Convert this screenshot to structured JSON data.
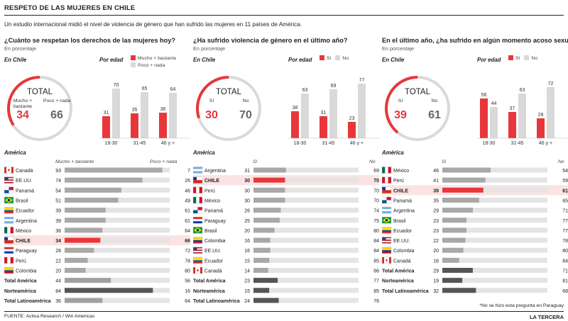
{
  "title": "RESPETO DE LAS MUJERES EN CHILE",
  "intro": "Un estudio internacional midió el nivel de violencia de género que han sufrido las mujeres en 11 países de América.",
  "source": "FUENTE: Activa Research / Win Americas",
  "brand": "LA TERCERA",
  "note": "*No se hizo esta pregunta en Paraguay",
  "colors": {
    "red": "#e8373a",
    "grey": "#d9d9d9",
    "mid": "#a0a0a0",
    "dark": "#555555",
    "highlight": "#fbe3e3"
  },
  "chart_data": [
    {
      "type": "bar",
      "question": "¿Cuánto se respetan los derechos de las mujeres hoy?",
      "subtitle": "En porcentaje",
      "en_chile_label": "En Chile",
      "por_edad_label": "Por edad",
      "legend": [
        "Mucho + bastante",
        "Poco + nada"
      ],
      "total": {
        "label": "TOTAL",
        "left_label": "Mucho + bastante",
        "right_label": "Poco + nada",
        "left": 34,
        "right": 66
      },
      "age_groups": [
        "18-30",
        "31-45",
        "46 y +"
      ],
      "age_series": [
        {
          "name": "Mucho + bastante",
          "values": [
            31,
            35,
            36
          ]
        },
        {
          "name": "Poco + nada",
          "values": [
            70,
            65,
            64
          ]
        }
      ],
      "america_label": "América",
      "col_left": "Mucho + bastante",
      "col_right": "Poco + nada",
      "rows": [
        {
          "name": "Canadá",
          "flag": "ca",
          "left": 93,
          "right": 7
        },
        {
          "name": "EE.UU.",
          "flag": "us",
          "left": 74,
          "right": 26
        },
        {
          "name": "Panamá",
          "flag": "pa",
          "left": 54,
          "right": 46
        },
        {
          "name": "Brasil",
          "flag": "br",
          "left": 51,
          "right": 49
        },
        {
          "name": "Ecuador",
          "flag": "ec",
          "left": 39,
          "right": 61
        },
        {
          "name": "Argentina",
          "flag": "ar",
          "left": 39,
          "right": 61
        },
        {
          "name": "México",
          "flag": "mx",
          "left": 36,
          "right": 64
        },
        {
          "name": "CHILE",
          "flag": "cl",
          "left": 34,
          "right": 66,
          "highlight": true
        },
        {
          "name": "Paraguay",
          "flag": "py",
          "left": 28,
          "right": 72
        },
        {
          "name": "Perú",
          "flag": "pe",
          "left": 22,
          "right": 78
        },
        {
          "name": "Colombia",
          "flag": "co",
          "left": 20,
          "right": 80
        },
        {
          "name": "Total América",
          "total": "mid",
          "left": 44,
          "right": 56
        },
        {
          "name": "Norteamérica",
          "total": "dark",
          "left": 84,
          "right": 16
        },
        {
          "name": "Total Latinoamérica",
          "total": "mid",
          "left": 36,
          "right": 64
        }
      ]
    },
    {
      "type": "bar",
      "question": "¿Ha sufrido violencia de género en el último año?",
      "subtitle": "En porcentaje",
      "en_chile_label": "En Chile",
      "por_edad_label": "Por edad",
      "legend": [
        "Sí",
        "No"
      ],
      "total": {
        "label": "TOTAL",
        "left_label": "Sí",
        "right_label": "No",
        "left": 30,
        "right": 70
      },
      "age_groups": [
        "18-30",
        "31-45",
        "46 y +"
      ],
      "age_series": [
        {
          "name": "Sí",
          "values": [
            38,
            31,
            23
          ]
        },
        {
          "name": "No",
          "values": [
            63,
            69,
            77
          ]
        }
      ],
      "america_label": "América",
      "col_left": "Sí",
      "col_right": "No",
      "rows": [
        {
          "name": "Argentina",
          "flag": "ar",
          "left": 31,
          "right": 69
        },
        {
          "name": "CHILE",
          "flag": "cl",
          "left": 30,
          "right": 70,
          "highlight": true
        },
        {
          "name": "Perú",
          "flag": "pe",
          "left": 30,
          "right": 70
        },
        {
          "name": "México",
          "flag": "mx",
          "left": 30,
          "right": 70
        },
        {
          "name": "Panamá",
          "flag": "pa",
          "left": 26,
          "right": 74
        },
        {
          "name": "Paraguay",
          "flag": "py",
          "left": 25,
          "right": 75
        },
        {
          "name": "Brasil",
          "flag": "br",
          "left": 20,
          "right": 80
        },
        {
          "name": "Colombia",
          "flag": "co",
          "left": 16,
          "right": 84
        },
        {
          "name": "EE.UU.",
          "flag": "us",
          "left": 16,
          "right": 84
        },
        {
          "name": "Ecuador",
          "flag": "ec",
          "left": 15,
          "right": 85
        },
        {
          "name": "Canadá",
          "flag": "ca",
          "left": 14,
          "right": 86
        },
        {
          "name": "Total América",
          "total": "dark",
          "left": 23,
          "right": 77
        },
        {
          "name": "Norteamérica",
          "total": "dark",
          "left": 15,
          "right": 85
        },
        {
          "name": "Total Latinoamérica",
          "total": "dark",
          "left": 24,
          "right": 76
        }
      ]
    },
    {
      "type": "bar",
      "question": "En el último año, ¿ha sufrido en algún momento acoso sexual?*",
      "subtitle": "En porcentaje",
      "en_chile_label": "En Chile",
      "por_edad_label": "Por edad",
      "legend": [
        "Sí",
        "No"
      ],
      "total": {
        "label": "TOTAL",
        "left_label": "Sí",
        "right_label": "No",
        "left": 39,
        "right": 61
      },
      "age_groups": [
        "18-30",
        "31-45",
        "46 y +"
      ],
      "age_series": [
        {
          "name": "Sí",
          "values": [
            56,
            37,
            28
          ]
        },
        {
          "name": "No",
          "values": [
            44,
            63,
            72
          ]
        }
      ],
      "america_label": "América",
      "col_left": "Sí",
      "col_right": "No",
      "rows": [
        {
          "name": "México",
          "flag": "mx",
          "left": 46,
          "right": 54
        },
        {
          "name": "Perú",
          "flag": "pe",
          "left": 41,
          "right": 59
        },
        {
          "name": "CHILE",
          "flag": "cl",
          "left": 39,
          "right": 61,
          "highlight": true
        },
        {
          "name": "Panamá",
          "flag": "pa",
          "left": 35,
          "right": 65
        },
        {
          "name": "Argentina",
          "flag": "ar",
          "left": 29,
          "right": 71
        },
        {
          "name": "Brasil",
          "flag": "br",
          "left": 23,
          "right": 77
        },
        {
          "name": "Ecuador",
          "flag": "ec",
          "left": 23,
          "right": 77
        },
        {
          "name": "EE.UU.",
          "flag": "us",
          "left": 22,
          "right": 78
        },
        {
          "name": "Colombia",
          "flag": "co",
          "left": 20,
          "right": 80
        },
        {
          "name": "Canadá",
          "flag": "ca",
          "left": 16,
          "right": 84
        },
        {
          "name": "Total América",
          "total": "dark",
          "left": 29,
          "right": 71
        },
        {
          "name": "Norteamérica",
          "total": "dark",
          "left": 19,
          "right": 81
        },
        {
          "name": "Total Latinoamérica",
          "total": "dark",
          "left": 32,
          "right": 68
        }
      ]
    }
  ]
}
